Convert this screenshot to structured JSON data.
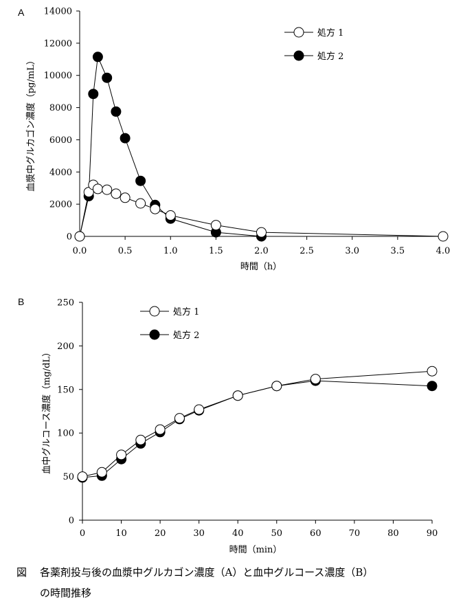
{
  "chart_data": [
    {
      "panel": "A",
      "type": "line",
      "title": "",
      "xlabel": "時間（h）",
      "ylabel": "血漿中グルカゴン濃度（pg/mL）",
      "xlim": [
        0,
        4.0
      ],
      "ylim": [
        0,
        14000
      ],
      "xticks": [
        0,
        0.5,
        1.0,
        1.5,
        2.0,
        2.5,
        3.0,
        3.5,
        4.0
      ],
      "xtick_labels": [
        "0.0",
        "0.5",
        "1.0",
        "1.5",
        "2.0",
        "2.5",
        "3.0",
        "3.5",
        "4.0"
      ],
      "yticks": [
        0,
        2000,
        4000,
        6000,
        8000,
        10000,
        12000,
        14000
      ],
      "ytick_labels": [
        "0",
        "2000",
        "4000",
        "6000",
        "8000",
        "10000",
        "12000",
        "14000"
      ],
      "legend_position": "top-right",
      "series": [
        {
          "name": "処方 1",
          "marker": "open-circle",
          "x": [
            0,
            0.1,
            0.15,
            0.2,
            0.3,
            0.4,
            0.5,
            0.67,
            0.83,
            1.0,
            1.5,
            2.0,
            4.0
          ],
          "values": [
            0,
            2750,
            3200,
            2950,
            2900,
            2650,
            2400,
            2050,
            1700,
            1300,
            700,
            250,
            0
          ]
        },
        {
          "name": "処方 2",
          "marker": "filled-circle",
          "x": [
            0,
            0.1,
            0.15,
            0.2,
            0.3,
            0.4,
            0.5,
            0.67,
            0.83,
            1.0,
            1.5,
            2.0
          ],
          "values": [
            0,
            2500,
            8850,
            11150,
            9850,
            7750,
            6100,
            3450,
            1950,
            1100,
            250,
            0
          ]
        }
      ]
    },
    {
      "panel": "B",
      "type": "line",
      "title": "",
      "xlabel": "時間（min）",
      "ylabel": "血中グルコース濃度（mg/dL）",
      "xlim": [
        0,
        90
      ],
      "ylim": [
        0,
        250
      ],
      "xticks": [
        0,
        10,
        20,
        30,
        40,
        50,
        60,
        70,
        80,
        90
      ],
      "xtick_labels": [
        "0",
        "10",
        "20",
        "30",
        "40",
        "50",
        "60",
        "70",
        "80",
        "90"
      ],
      "yticks": [
        0,
        50,
        100,
        150,
        200,
        250
      ],
      "ytick_labels": [
        "0",
        "50",
        "100",
        "150",
        "200",
        "250"
      ],
      "legend_position": "top-left",
      "series": [
        {
          "name": "処方 1",
          "marker": "open-circle",
          "x": [
            0,
            5,
            10,
            15,
            20,
            25,
            30,
            40,
            50,
            60,
            90
          ],
          "values": [
            50,
            55,
            75,
            92,
            104,
            117,
            127,
            143,
            154,
            162,
            171
          ]
        },
        {
          "name": "処方 2",
          "marker": "filled-circle",
          "x": [
            0,
            5,
            10,
            15,
            20,
            25,
            30,
            40,
            50,
            60,
            90
          ],
          "values": [
            49,
            51,
            70,
            88,
            101,
            116,
            126,
            143,
            154,
            160,
            154
          ]
        }
      ]
    }
  ],
  "caption": {
    "label": "図",
    "line1": "各薬剤投与後の血漿中グルカゴン濃度（A）と血中グルコース濃度（B）",
    "line2": "の時間推移"
  }
}
